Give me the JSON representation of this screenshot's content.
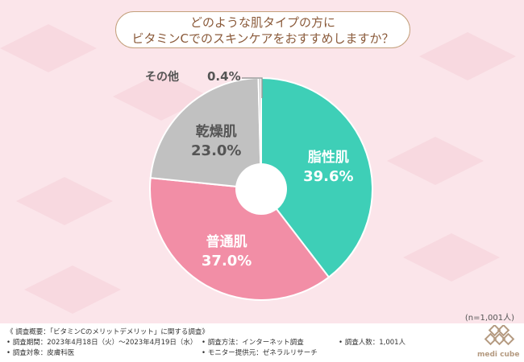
{
  "title": {
    "line1": "どのような肌タイプの方に",
    "line2": "ビタミンCでのスキンケアをおすすめしますか？"
  },
  "chart_data": {
    "type": "pie",
    "donut": true,
    "categories": [
      "脂性肌",
      "普通肌",
      "乾燥肌",
      "その他"
    ],
    "values": [
      39.6,
      37.0,
      23.0,
      0.4
    ],
    "value_labels": [
      "39.6%",
      "37.0%",
      "23.0%",
      "0.4%"
    ],
    "colors": [
      "#3ecfb7",
      "#f28ea6",
      "#c1c1c1",
      "#c1c1c1"
    ],
    "label_colors": [
      "#ffffff",
      "#ffffff",
      "#555555",
      "#555555"
    ],
    "start": "12 o'clock",
    "direction": "clockwise"
  },
  "sample_size": "(n=1,001人)",
  "footer": {
    "overview": "《 調査概要：「ビタミンCのメリットデメリット」に関する調査》",
    "period": "• 調査期間：2023年4月18日（火）～2023年4月19日（水）",
    "target": "• 調査対象：皮膚科医",
    "method": "• 調査方法：インターネット調査",
    "provider": "• モニター提供元：ゼネラルリサーチ",
    "count": "• 調査人数：1,001人"
  },
  "logo": {
    "text": "medi cube"
  },
  "colors": {
    "background": "#fbe5ea",
    "title_border": "#c4a07c",
    "title_text": "#8a5a3a"
  }
}
